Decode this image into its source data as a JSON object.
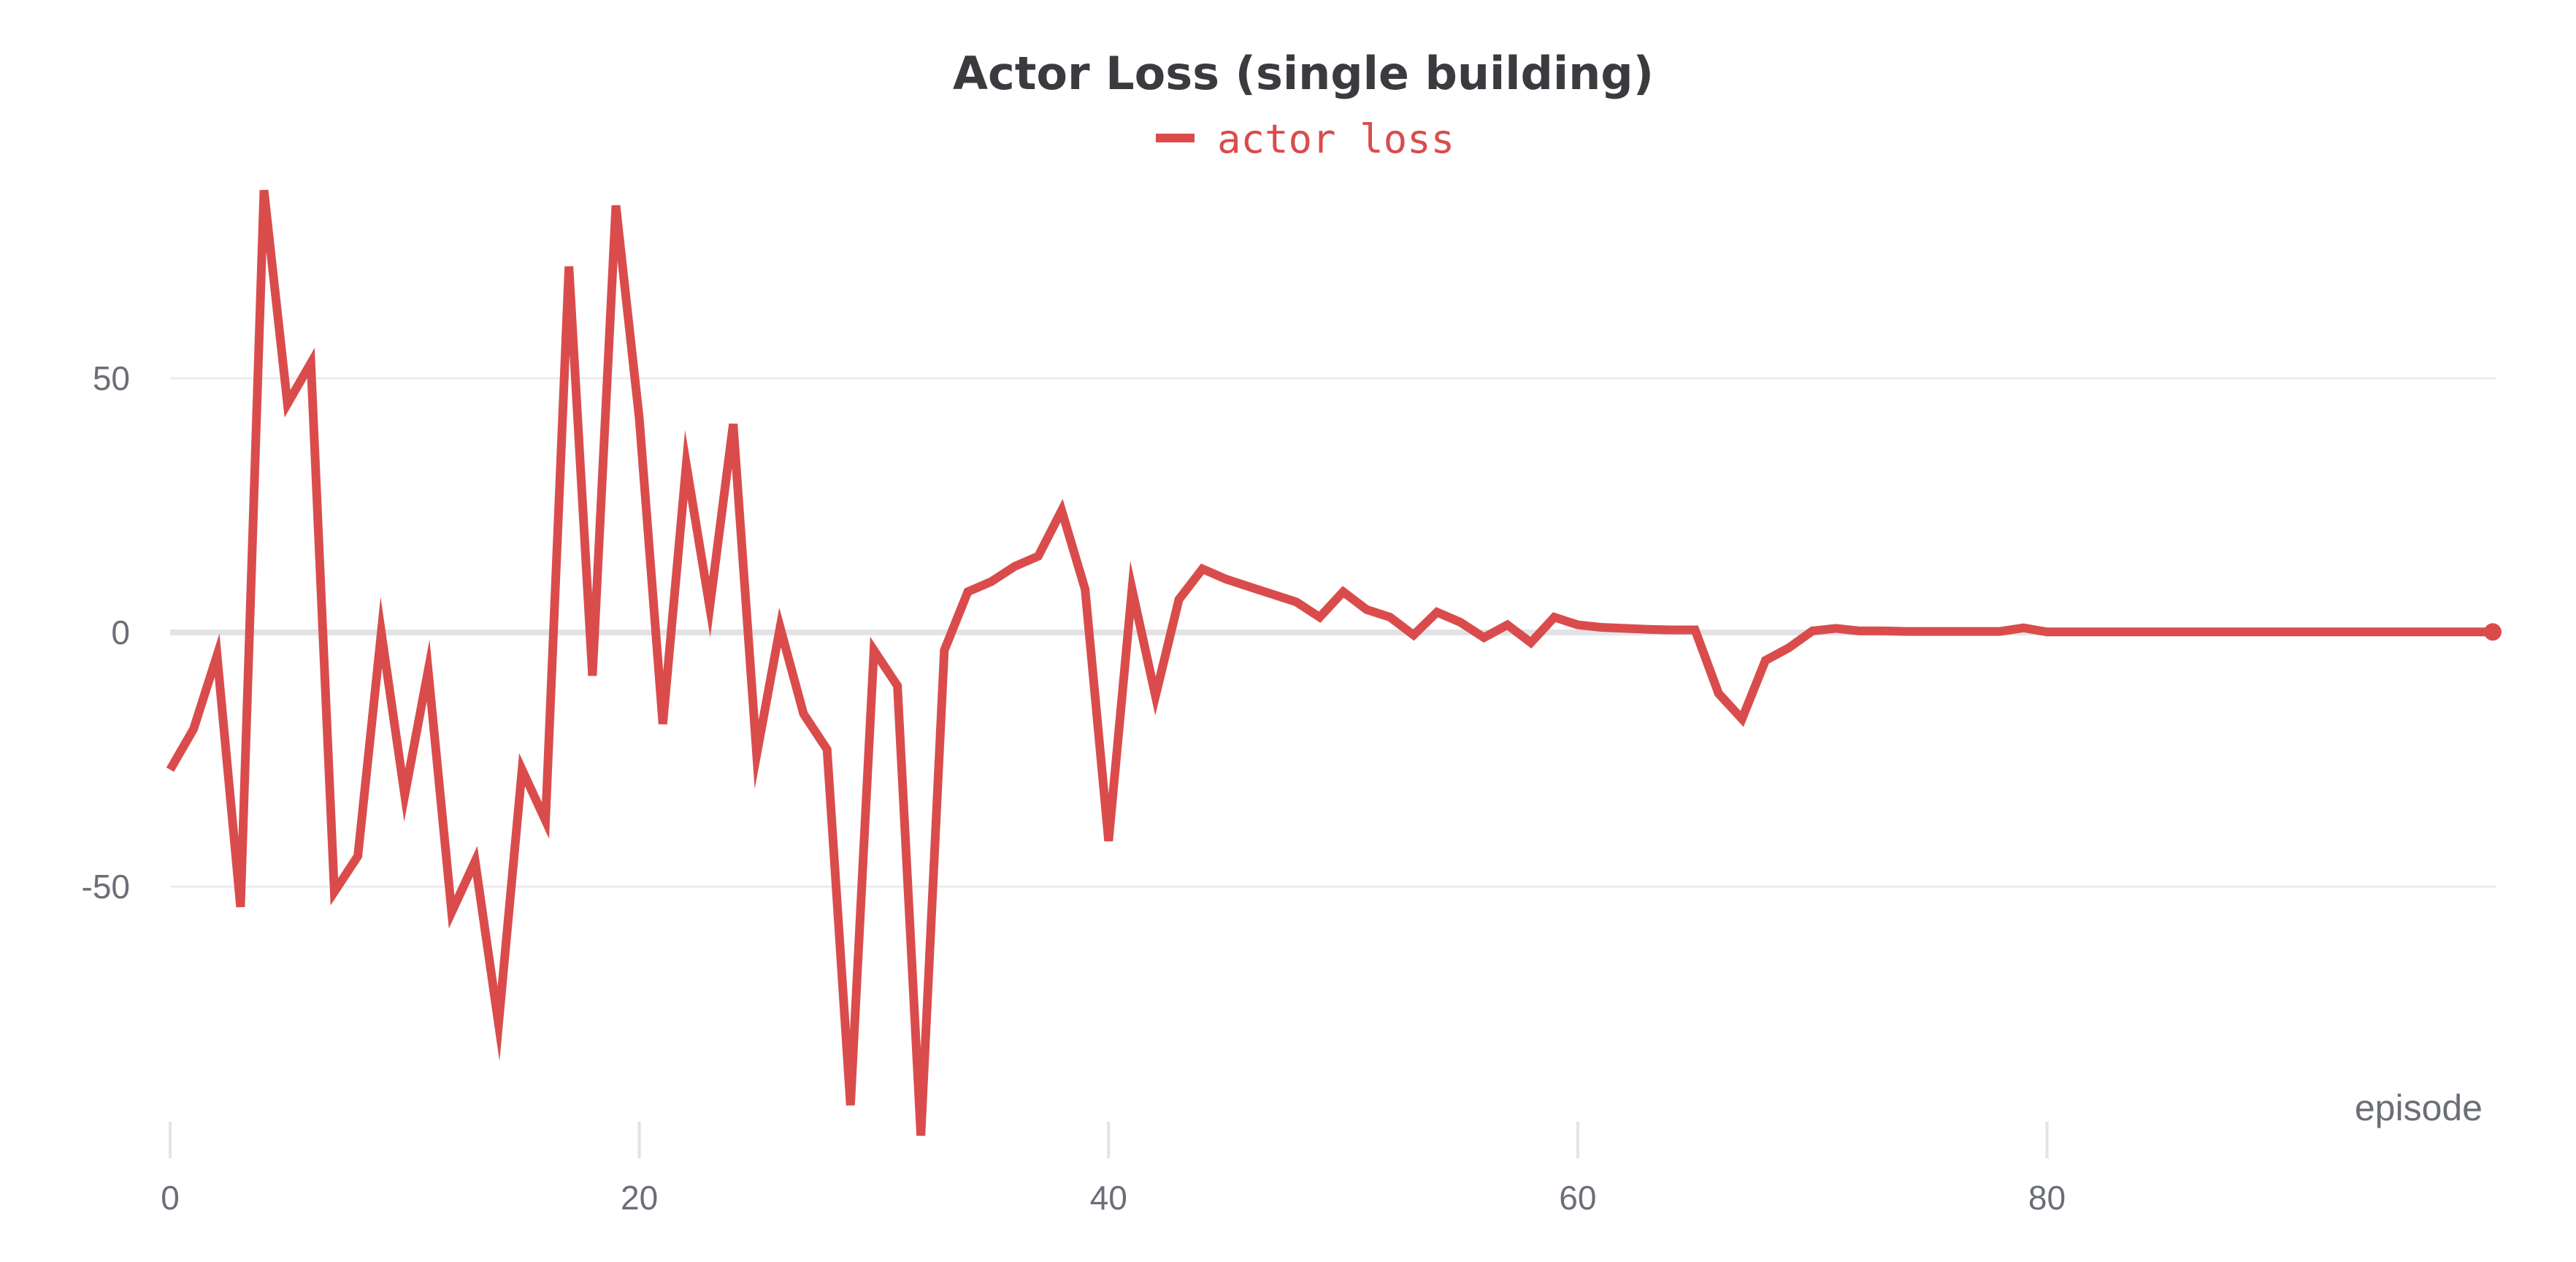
{
  "chart_data": {
    "type": "line",
    "title": "Actor Loss (single building)",
    "xlabel": "episode",
    "ylabel": "",
    "xlim": [
      0,
      99
    ],
    "ylim": [
      -99,
      87
    ],
    "x_ticks": [
      0,
      20,
      40,
      60,
      80
    ],
    "y_ticks": [
      -50,
      0,
      50
    ],
    "grid": true,
    "legend_position": "top-center",
    "series": [
      {
        "name": "actor loss",
        "color": "#da4c4c",
        "x": [
          0,
          1,
          2,
          3,
          4,
          5,
          6,
          7,
          8,
          9,
          10,
          11,
          12,
          13,
          14,
          15,
          16,
          17,
          18,
          19,
          20,
          21,
          22,
          23,
          24,
          25,
          26,
          27,
          28,
          29,
          30,
          31,
          32,
          33,
          34,
          35,
          36,
          37,
          38,
          39,
          40,
          41,
          42,
          43,
          44,
          45,
          46,
          47,
          48,
          49,
          50,
          51,
          52,
          53,
          54,
          55,
          56,
          57,
          58,
          59,
          60,
          61,
          62,
          63,
          64,
          65,
          66,
          67,
          68,
          69,
          70,
          71,
          72,
          73,
          74,
          75,
          76,
          77,
          78,
          79,
          80,
          81,
          82,
          83,
          84,
          85,
          86,
          87,
          88,
          89,
          90,
          91,
          92,
          93,
          94,
          95,
          96,
          97,
          98,
          99
        ],
        "values": [
          -27,
          -19,
          -4.5,
          -54,
          87,
          45,
          53,
          -51,
          -44,
          0,
          -32,
          -7.5,
          -55,
          -45,
          -77,
          -27,
          -37,
          72,
          -8.5,
          84,
          42,
          -18,
          33,
          5,
          41,
          -24,
          1,
          -16,
          -23,
          -93,
          -3.5,
          -10.5,
          -99,
          -3.5,
          8,
          10,
          13,
          15,
          24,
          8.5,
          -41,
          8.5,
          -12.5,
          6.5,
          12.5,
          10.5,
          9,
          7.5,
          6,
          3,
          8,
          4.5,
          3,
          -0.5,
          4,
          2,
          -1,
          1.5,
          -2,
          3,
          1.5,
          1,
          0.8,
          0.6,
          0.5,
          0.5,
          -12,
          -17,
          -5.5,
          -3,
          0.3,
          0.8,
          0.3,
          0.3,
          0.2,
          0.2,
          0.2,
          0.2,
          0.2,
          0.9,
          0.1,
          0.1,
          0.1,
          0.1,
          0.1,
          0.1,
          0.1,
          0.1,
          0.1,
          0.1,
          0.1,
          0.1,
          0.1,
          0.1,
          0.1,
          0.1,
          0.1,
          0.1,
          0.1,
          0.1
        ]
      }
    ]
  }
}
